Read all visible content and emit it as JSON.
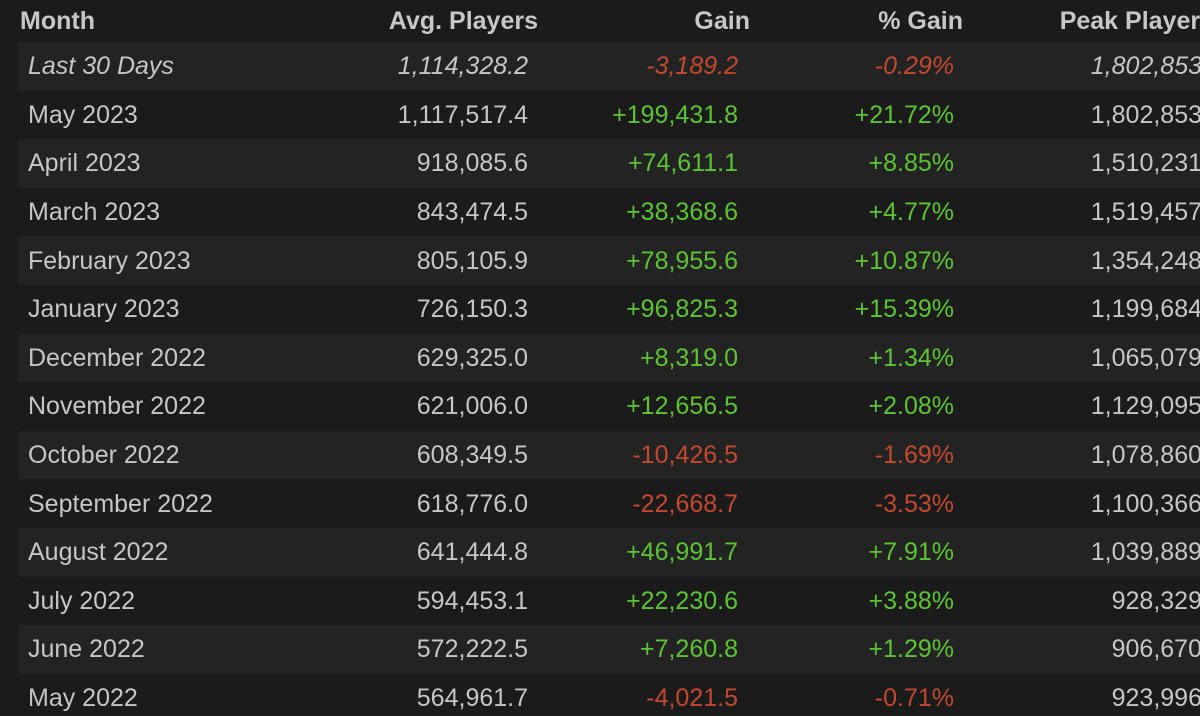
{
  "colors": {
    "background": "#1b1b1b",
    "row_alt": "#232323",
    "text": "#c6c6c6",
    "positive": "#5cc431",
    "negative": "#c4482d"
  },
  "table": {
    "headers": {
      "month": "Month",
      "avg_players": "Avg. Players",
      "gain": "Gain",
      "pct_gain": "% Gain",
      "peak_players": "Peak Players"
    },
    "rows": [
      {
        "month": "Last 30 Days",
        "avg": "1,114,328.2",
        "gain": "-3,189.2",
        "pct": "-0.29%",
        "peak": "1,802,853",
        "trend": "neg",
        "italic": true
      },
      {
        "month": "May 2023",
        "avg": "1,117,517.4",
        "gain": "+199,431.8",
        "pct": "+21.72%",
        "peak": "1,802,853",
        "trend": "pos"
      },
      {
        "month": "April 2023",
        "avg": "918,085.6",
        "gain": "+74,611.1",
        "pct": "+8.85%",
        "peak": "1,510,231",
        "trend": "pos"
      },
      {
        "month": "March 2023",
        "avg": "843,474.5",
        "gain": "+38,368.6",
        "pct": "+4.77%",
        "peak": "1,519,457",
        "trend": "pos"
      },
      {
        "month": "February 2023",
        "avg": "805,105.9",
        "gain": "+78,955.6",
        "pct": "+10.87%",
        "peak": "1,354,248",
        "trend": "pos"
      },
      {
        "month": "January 2023",
        "avg": "726,150.3",
        "gain": "+96,825.3",
        "pct": "+15.39%",
        "peak": "1,199,684",
        "trend": "pos"
      },
      {
        "month": "December 2022",
        "avg": "629,325.0",
        "gain": "+8,319.0",
        "pct": "+1.34%",
        "peak": "1,065,079",
        "trend": "pos"
      },
      {
        "month": "November 2022",
        "avg": "621,006.0",
        "gain": "+12,656.5",
        "pct": "+2.08%",
        "peak": "1,129,095",
        "trend": "pos"
      },
      {
        "month": "October 2022",
        "avg": "608,349.5",
        "gain": "-10,426.5",
        "pct": "-1.69%",
        "peak": "1,078,860",
        "trend": "neg"
      },
      {
        "month": "September 2022",
        "avg": "618,776.0",
        "gain": "-22,668.7",
        "pct": "-3.53%",
        "peak": "1,100,366",
        "trend": "neg"
      },
      {
        "month": "August 2022",
        "avg": "641,444.8",
        "gain": "+46,991.7",
        "pct": "+7.91%",
        "peak": "1,039,889",
        "trend": "pos"
      },
      {
        "month": "July 2022",
        "avg": "594,453.1",
        "gain": "+22,230.6",
        "pct": "+3.88%",
        "peak": "928,329",
        "trend": "pos"
      },
      {
        "month": "June 2022",
        "avg": "572,222.5",
        "gain": "+7,260.8",
        "pct": "+1.29%",
        "peak": "906,670",
        "trend": "pos"
      },
      {
        "month": "May 2022",
        "avg": "564,961.7",
        "gain": "-4,021.5",
        "pct": "-0.71%",
        "peak": "923,996",
        "trend": "neg"
      }
    ]
  }
}
